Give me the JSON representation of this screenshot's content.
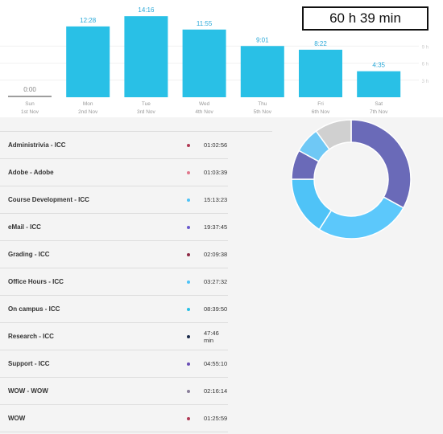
{
  "total": {
    "label": "60 h 39 min"
  },
  "chart_data": {
    "type": "bar",
    "categories": [
      "Sun",
      "Mon",
      "Tue",
      "Wed",
      "Thu",
      "Fri",
      "Sat"
    ],
    "dates": [
      "1st Nov",
      "2nd Nov",
      "3rd Nov",
      "4th Nov",
      "5th Nov",
      "6th Nov",
      "7th Nov"
    ],
    "value_labels": [
      "0:00",
      "12:28",
      "14:16",
      "11:55",
      "9:01",
      "8:22",
      "4:35"
    ],
    "values": [
      0,
      12.47,
      14.27,
      11.92,
      9.02,
      8.37,
      4.58
    ],
    "y_ticks": [
      "3 h",
      "6 h",
      "9 h"
    ],
    "y_tick_values": [
      3,
      6,
      9
    ],
    "ylim": [
      0,
      15
    ],
    "bar_color": "#29c0e6",
    "zero_bar_color": "#9e9e9e",
    "label_color": "#29a8d8"
  },
  "activities": [
    {
      "name": "Administrivia - ICC",
      "duration": "01:02:56",
      "color": "#b03a55"
    },
    {
      "name": "Adobe - Adobe",
      "duration": "01:03:39",
      "color": "#e0788c"
    },
    {
      "name": "Course Development - ICC",
      "duration": "15:13:23",
      "color": "#4fc3f7"
    },
    {
      "name": "eMail - ICC",
      "duration": "19:37:45",
      "color": "#6a5acd"
    },
    {
      "name": "Grading - ICC",
      "duration": "02:09:38",
      "color": "#8e2a45"
    },
    {
      "name": "Office Hours - ICC",
      "duration": "03:27:32",
      "color": "#4fc3f7"
    },
    {
      "name": "On campus - ICC",
      "duration": "08:39:50",
      "color": "#29c0e6"
    },
    {
      "name": "Research - ICC",
      "duration": "47:46 min",
      "color": "#1a2a4a"
    },
    {
      "name": "Support - ICC",
      "duration": "04:55:10",
      "color": "#6a4fb5"
    },
    {
      "name": "WOW - WOW",
      "duration": "02:16:14",
      "color": "#8a7f9a"
    },
    {
      "name": "WOW",
      "duration": "01:25:59",
      "color": "#b03a55"
    }
  ],
  "donut_data": {
    "type": "pie",
    "values": [
      0.33,
      0.26,
      0.16,
      0.08,
      0.07,
      0.1
    ],
    "colors": [
      "#6a6ab8",
      "#5cc8fb",
      "#4fc3f7",
      "#6a6ab8",
      "#6fc8f5",
      "#d0d0d0"
    ]
  }
}
